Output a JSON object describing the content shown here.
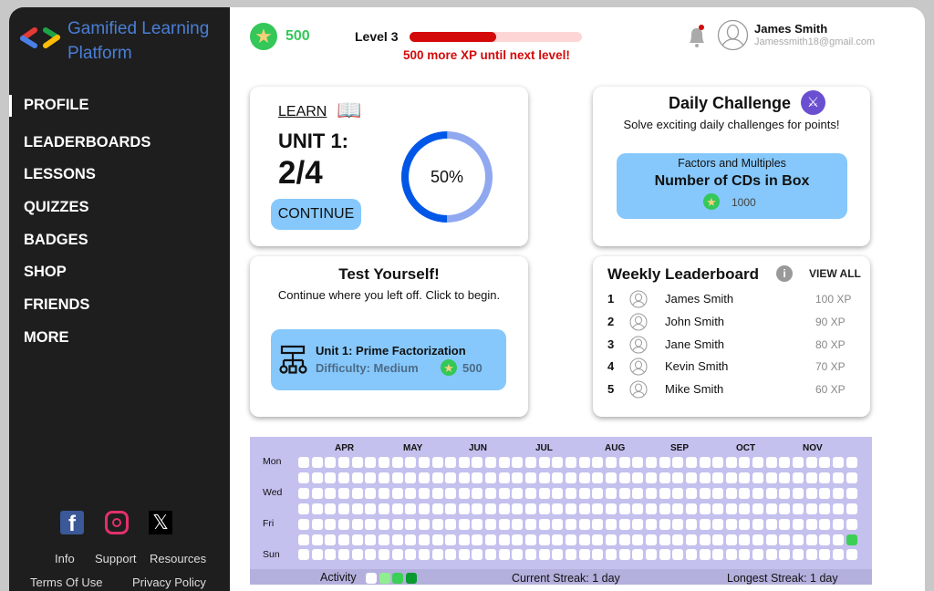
{
  "app": {
    "title": "Gamified Learning Platform",
    "icon": "code-brackets-logo"
  },
  "sidebar": {
    "active": "PROFILE",
    "items": [
      {
        "label": "PROFILE"
      },
      {
        "label": "LEADERBOARDS"
      },
      {
        "label": "LESSONS"
      },
      {
        "label": "QUIZZES"
      },
      {
        "label": "BADGES"
      },
      {
        "label": "SHOP"
      },
      {
        "label": "FRIENDS"
      },
      {
        "label": "MORE"
      }
    ],
    "social": [
      "facebook-icon",
      "instagram-icon",
      "x-icon"
    ],
    "footer_links": [
      "Info",
      "Support",
      "Resources",
      "Terms Of Use",
      "Privacy Policy"
    ]
  },
  "header": {
    "points": "500",
    "level": "Level 3",
    "level_progress_percent": 50,
    "xp_message": "500 more XP until next level!",
    "user": {
      "name": "James Smith",
      "email": "Jamessmith18@gmail.com"
    },
    "notification_dot": true
  },
  "learn": {
    "label": "LEARN",
    "unit": "UNIT 1:",
    "progress": "2/4",
    "percent_label": "50%",
    "percent": 50,
    "button": "CONTINUE"
  },
  "daily": {
    "title": "Daily Challenge",
    "subtitle": "Solve exciting daily challenges for points!",
    "category": "Factors and Multiples",
    "name": "Number of CDs in Box",
    "points": "1000"
  },
  "test": {
    "title": "Test Yourself!",
    "subtitle": "Continue where you left off. Click to begin.",
    "unit": "Unit 1: Prime Factorization",
    "difficulty": "Difficulty: Medium",
    "points": "500"
  },
  "leaderboard": {
    "title": "Weekly Leaderboard",
    "view_all": "VIEW ALL",
    "rows": [
      {
        "rank": "1",
        "name": "James Smith",
        "xp": "100 XP"
      },
      {
        "rank": "2",
        "name": "John Smith",
        "xp": "90 XP"
      },
      {
        "rank": "3",
        "name": "Jane Smith",
        "xp": "80 XP"
      },
      {
        "rank": "4",
        "name": "Kevin Smith",
        "xp": "70 XP"
      },
      {
        "rank": "5",
        "name": "Mike Smith",
        "xp": "60 XP"
      }
    ]
  },
  "activity": {
    "months": [
      "APR",
      "MAY",
      "JUN",
      "JUL",
      "AUG",
      "SEP",
      "OCT",
      "NOV"
    ],
    "day_labels": [
      "Mon",
      "Wed",
      "Fri",
      "Sun"
    ],
    "weeks": 42,
    "active_cells": [
      {
        "week": 42,
        "day": "Sat",
        "level": 2
      }
    ],
    "legend_label": "Activity",
    "legend_colors": [
      "#ffffff",
      "#90ee90",
      "#3ccf55",
      "#0a9a30"
    ],
    "current_streak": "Current Streak: 1 day",
    "longest_streak": "Longest Streak: 1 day"
  },
  "colors": {
    "sidebar": "#1e1e1e",
    "accent_blue": "#86c8fb",
    "xp_red": "#d40a0a",
    "points_green": "#34c759",
    "heatmap_bg": "#c4c1ee"
  }
}
